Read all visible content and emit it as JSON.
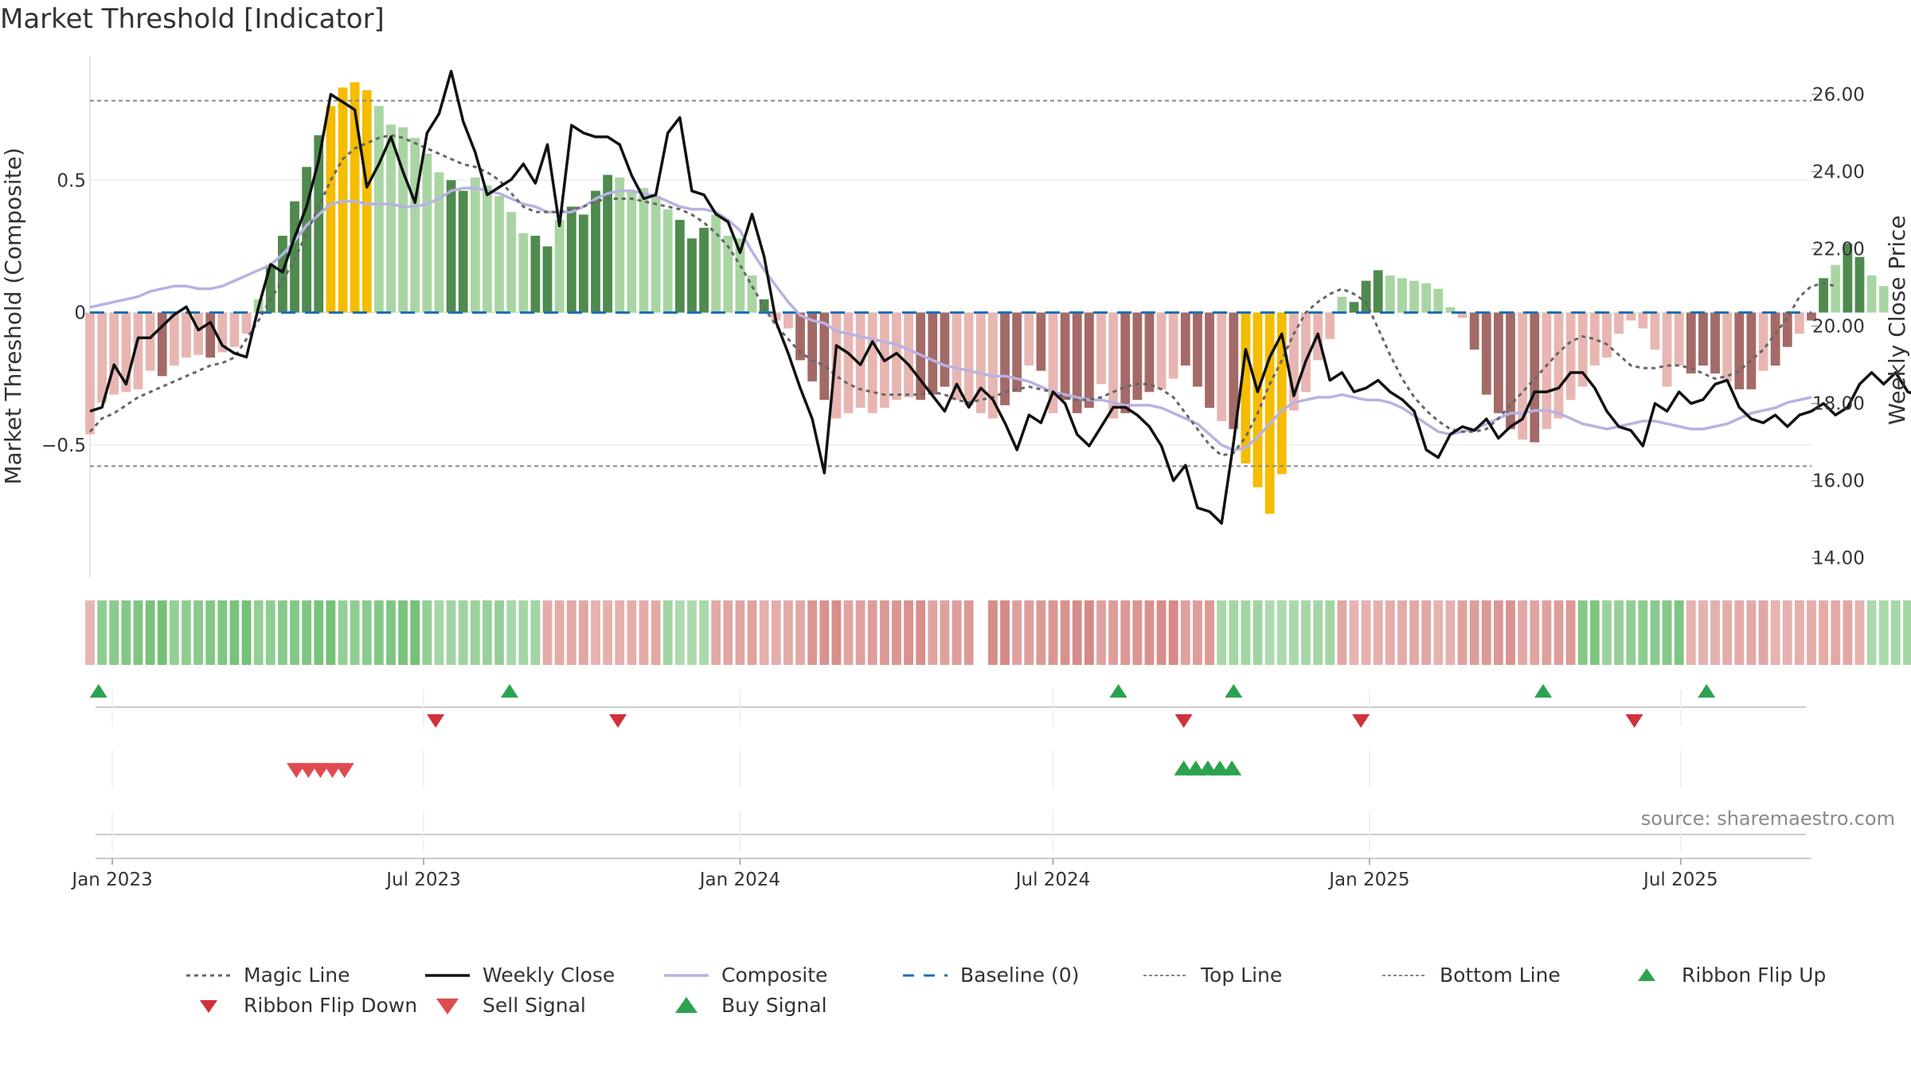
{
  "title": "Market Threshold [Indicator]",
  "source": "source: sharemaestro.com",
  "colors": {
    "pos_dark": "#4f8a4f",
    "pos_light": "#a9d5a3",
    "neg_dark": "#a36a68",
    "neg_light": "#e8b6b2",
    "extreme": "#f5bc00",
    "weekly_close": "#111111",
    "composite": "#b8b2e2",
    "magic_line": "#666666",
    "baseline": "#1f6fb2",
    "threshold_line": "#888888",
    "buy": "#2ca24e",
    "sell": "#d0313b"
  },
  "chart_data": {
    "type": "bar",
    "title": "Market Threshold [Indicator]",
    "ylabel": "Market Threshold (Composite)",
    "y2label": "Weekly Close Price",
    "ylim": [
      -1.0,
      0.97
    ],
    "y2lim": [
      13.5,
      27.0
    ],
    "xlim": [
      "2022-12-19",
      "2025-09-15"
    ],
    "yticks": [
      "0.5",
      "0",
      "−0.5"
    ],
    "y2ticks": [
      "26.00",
      "24.00",
      "22.00",
      "20.00",
      "18.00",
      "16.00",
      "14.00"
    ],
    "xticks": [
      "Jan 2023",
      "Jul 2023",
      "Jan 2024",
      "Jul 2024",
      "Jan 2025",
      "Jul 2025"
    ],
    "top_line": 0.8,
    "bottom_line": -0.58,
    "baseline": 0,
    "series_names": [
      "Magic Line",
      "Weekly Close",
      "Composite",
      "Baseline (0)",
      "Top Line",
      "Bottom Line",
      "Ribbon Flip Up",
      "Ribbon Flip Down",
      "Sell Signal",
      "Buy Signal"
    ],
    "start_week": "2022-12-19",
    "composite_bars": [
      -0.46,
      -0.34,
      -0.31,
      -0.3,
      -0.29,
      -0.22,
      -0.24,
      -0.2,
      -0.17,
      -0.16,
      -0.17,
      -0.15,
      -0.13,
      -0.08,
      0.05,
      0.18,
      0.29,
      0.42,
      0.55,
      0.67,
      0.78,
      0.85,
      0.87,
      0.84,
      0.78,
      0.71,
      0.7,
      0.66,
      0.6,
      0.53,
      0.5,
      0.46,
      0.51,
      0.48,
      0.44,
      0.38,
      0.3,
      0.29,
      0.25,
      0.35,
      0.4,
      0.37,
      0.46,
      0.52,
      0.51,
      0.46,
      0.47,
      0.44,
      0.39,
      0.35,
      0.28,
      0.32,
      0.37,
      0.29,
      0.28,
      0.14,
      0.05,
      -0.03,
      -0.06,
      -0.18,
      -0.26,
      -0.33,
      -0.4,
      -0.38,
      -0.36,
      -0.38,
      -0.36,
      -0.33,
      -0.32,
      -0.33,
      -0.31,
      -0.28,
      -0.33,
      -0.35,
      -0.38,
      -0.4,
      -0.35,
      -0.3,
      -0.2,
      -0.22,
      -0.38,
      -0.33,
      -0.38,
      -0.36,
      -0.27,
      -0.4,
      -0.38,
      -0.33,
      -0.3,
      -0.29,
      -0.25,
      -0.2,
      -0.28,
      -0.36,
      -0.41,
      -0.44,
      -0.57,
      -0.66,
      -0.76,
      -0.61,
      -0.37,
      -0.3,
      -0.18,
      -0.1,
      0.06,
      0.04,
      0.12,
      0.16,
      0.14,
      0.13,
      0.12,
      0.11,
      0.09,
      0.02,
      -0.02,
      -0.14,
      -0.31,
      -0.38,
      -0.44,
      -0.48,
      -0.49,
      -0.44,
      -0.4,
      -0.33,
      -0.28,
      -0.2,
      -0.17,
      -0.08,
      -0.03,
      -0.06,
      -0.14,
      -0.28,
      -0.2,
      -0.23,
      -0.2,
      -0.23,
      -0.26,
      -0.29,
      -0.29,
      -0.22,
      -0.2,
      -0.13,
      -0.08,
      -0.03,
      0.13,
      0.18,
      0.26,
      0.21,
      0.14,
      0.1
    ],
    "extreme_weeks": [
      20,
      21,
      22,
      23,
      96,
      97,
      98,
      99
    ],
    "dark_weeks": [
      6,
      10,
      15,
      16,
      17,
      18,
      19,
      30,
      31,
      37,
      38,
      40,
      41,
      42,
      43,
      49,
      50,
      51,
      56,
      59,
      60,
      61,
      69,
      70,
      71,
      76,
      77,
      79,
      81,
      82,
      83,
      86,
      87,
      88,
      91,
      92,
      93,
      95,
      96,
      97,
      98,
      99,
      105,
      106,
      107,
      115,
      116,
      117,
      118,
      120,
      133,
      134,
      135,
      137,
      138,
      140,
      141,
      143,
      144,
      146,
      147
    ],
    "weekly_close": [
      17.8,
      17.9,
      19.0,
      18.5,
      19.7,
      19.7,
      20.0,
      20.3,
      20.5,
      19.9,
      20.1,
      19.5,
      19.3,
      19.2,
      20.5,
      21.6,
      21.4,
      22.3,
      23.1,
      24.3,
      26.0,
      25.8,
      25.6,
      23.6,
      24.2,
      24.9,
      24.0,
      23.2,
      25.0,
      25.5,
      26.6,
      25.3,
      24.5,
      23.4,
      23.6,
      23.8,
      24.2,
      23.7,
      24.7,
      22.6,
      25.2,
      25.0,
      24.9,
      24.9,
      24.7,
      23.9,
      23.3,
      23.4,
      25.0,
      25.4,
      23.5,
      23.4,
      22.9,
      22.7,
      21.9,
      22.9,
      21.8,
      20.1,
      19.3,
      18.4,
      17.6,
      16.2,
      19.5,
      19.3,
      19.0,
      19.6,
      19.1,
      19.3,
      19.0,
      18.6,
      18.2,
      17.8,
      18.5,
      17.9,
      18.4,
      18.1,
      17.5,
      16.8,
      17.7,
      17.5,
      18.3,
      18.0,
      17.2,
      16.9,
      17.4,
      17.9,
      17.9,
      17.7,
      17.4,
      16.9,
      16.0,
      16.4,
      15.3,
      15.2,
      14.9,
      17.0,
      19.4,
      18.3,
      19.2,
      19.8,
      18.2,
      19.1,
      19.8,
      18.6,
      18.8,
      18.3,
      18.4,
      18.6,
      18.3,
      18.1,
      17.8,
      16.8,
      16.6,
      17.2,
      17.4,
      17.3,
      17.6,
      17.1,
      17.4,
      17.6,
      18.3,
      18.3,
      18.4,
      18.8,
      18.8,
      18.4,
      17.8,
      17.4,
      17.3,
      16.9,
      18.0,
      17.8,
      18.3,
      18.0,
      18.1,
      18.5,
      18.6,
      17.9,
      17.6,
      17.5,
      17.7,
      17.4,
      17.7,
      17.8,
      18.0,
      17.7,
      17.9,
      18.5,
      18.8,
      18.5,
      18.8,
      18.3,
      18.2
    ],
    "composite_line": [
      0.02,
      0.03,
      0.04,
      0.05,
      0.06,
      0.08,
      0.09,
      0.1,
      0.1,
      0.09,
      0.09,
      0.1,
      0.12,
      0.14,
      0.16,
      0.18,
      0.22,
      0.27,
      0.33,
      0.37,
      0.41,
      0.42,
      0.42,
      0.41,
      0.41,
      0.41,
      0.4,
      0.4,
      0.41,
      0.43,
      0.46,
      0.47,
      0.47,
      0.46,
      0.45,
      0.43,
      0.41,
      0.4,
      0.38,
      0.38,
      0.38,
      0.4,
      0.43,
      0.45,
      0.46,
      0.46,
      0.45,
      0.44,
      0.42,
      0.4,
      0.39,
      0.39,
      0.38,
      0.35,
      0.31,
      0.23,
      0.16,
      0.1,
      0.04,
      -0.01,
      -0.03,
      -0.04,
      -0.07,
      -0.08,
      -0.09,
      -0.1,
      -0.11,
      -0.12,
      -0.14,
      -0.16,
      -0.18,
      -0.2,
      -0.21,
      -0.22,
      -0.23,
      -0.24,
      -0.24,
      -0.25,
      -0.26,
      -0.28,
      -0.3,
      -0.31,
      -0.32,
      -0.33,
      -0.33,
      -0.34,
      -0.35,
      -0.35,
      -0.35,
      -0.36,
      -0.38,
      -0.4,
      -0.42,
      -0.46,
      -0.5,
      -0.52,
      -0.51,
      -0.47,
      -0.42,
      -0.37,
      -0.34,
      -0.33,
      -0.32,
      -0.32,
      -0.31,
      -0.32,
      -0.33,
      -0.33,
      -0.34,
      -0.36,
      -0.39,
      -0.42,
      -0.45,
      -0.46,
      -0.45,
      -0.44,
      -0.42,
      -0.4,
      -0.38,
      -0.38,
      -0.37,
      -0.37,
      -0.38,
      -0.4,
      -0.42,
      -0.43,
      -0.44,
      -0.43,
      -0.42,
      -0.41,
      -0.41,
      -0.42,
      -0.43,
      -0.44,
      -0.44,
      -0.43,
      -0.42,
      -0.4,
      -0.38,
      -0.37,
      -0.36,
      -0.34,
      -0.33,
      -0.32
    ],
    "magic_line": [
      -0.45,
      -0.4,
      -0.38,
      -0.35,
      -0.32,
      -0.3,
      -0.28,
      -0.26,
      -0.24,
      -0.22,
      -0.2,
      -0.19,
      -0.17,
      -0.1,
      -0.03,
      0.05,
      0.12,
      0.2,
      0.3,
      0.4,
      0.5,
      0.58,
      0.62,
      0.64,
      0.66,
      0.67,
      0.66,
      0.64,
      0.62,
      0.6,
      0.58,
      0.56,
      0.55,
      0.53,
      0.5,
      0.45,
      0.4,
      0.38,
      0.38,
      0.38,
      0.39,
      0.4,
      0.42,
      0.43,
      0.43,
      0.43,
      0.42,
      0.41,
      0.4,
      0.39,
      0.37,
      0.34,
      0.3,
      0.25,
      0.18,
      0.1,
      0.02,
      -0.05,
      -0.1,
      -0.15,
      -0.18,
      -0.2,
      -0.24,
      -0.27,
      -0.29,
      -0.3,
      -0.31,
      -0.31,
      -0.31,
      -0.31,
      -0.3,
      -0.31,
      -0.33,
      -0.34,
      -0.33,
      -0.32,
      -0.3,
      -0.29,
      -0.28,
      -0.29,
      -0.3,
      -0.32,
      -0.33,
      -0.33,
      -0.32,
      -0.3,
      -0.28,
      -0.27,
      -0.27,
      -0.29,
      -0.32,
      -0.38,
      -0.44,
      -0.5,
      -0.54,
      -0.53,
      -0.47,
      -0.38,
      -0.27,
      -0.18,
      -0.08,
      0.0,
      0.04,
      0.07,
      0.09,
      0.07,
      0.04,
      -0.06,
      -0.16,
      -0.25,
      -0.32,
      -0.37,
      -0.41,
      -0.44,
      -0.45,
      -0.45,
      -0.44,
      -0.4,
      -0.35,
      -0.3,
      -0.25,
      -0.2,
      -0.15,
      -0.11,
      -0.09,
      -0.1,
      -0.12,
      -0.16,
      -0.2,
      -0.21,
      -0.21,
      -0.2,
      -0.2,
      -0.21,
      -0.23,
      -0.25,
      -0.24,
      -0.22,
      -0.18,
      -0.14,
      -0.08,
      -0.02,
      0.06,
      0.1,
      0.11,
      0.1
    ],
    "ribbon": [
      -0.3,
      0.5,
      0.55,
      0.55,
      0.55,
      0.6,
      0.6,
      0.6,
      0.62,
      0.62,
      0.62,
      0.65,
      0.65,
      0.65,
      0.68,
      0.68,
      0.7,
      0.7,
      0.72,
      0.75,
      0.8,
      0.85,
      0.88,
      0.9,
      0.92,
      0.88,
      0.85,
      0.8,
      0.7,
      0.6,
      0.5,
      0.45,
      0.4,
      0.35,
      0.3,
      0.25,
      0.2,
      -0.45,
      -0.45,
      -0.45,
      -0.45,
      -0.45,
      -0.5,
      -0.45,
      -0.45,
      -0.45,
      -0.45,
      -0.5,
      0.35,
      0.35,
      0.35,
      0.3,
      0.3,
      0.3,
      -0.3,
      -0.35,
      -0.35,
      -0.4,
      -0.45,
      -0.45,
      -0.5,
      -0.5,
      -0.55,
      -0.55,
      -0.55,
      -0.6,
      -0.6,
      -0.6,
      -0.65,
      -0.7,
      -0.72,
      -0.75,
      -0.78,
      -0.8,
      null,
      -0.7,
      -0.68,
      -0.66,
      -0.64,
      -0.62,
      -0.6,
      -0.58,
      -0.55,
      -0.52,
      -0.5,
      -0.48,
      -0.45,
      -0.42,
      -0.4,
      -0.38,
      -0.35,
      -0.32,
      -0.3,
      -0.3,
      -0.3,
      -0.3,
      -0.3,
      -0.3,
      -0.3,
      -0.3,
      -0.3,
      -0.3,
      -0.3,
      -0.3,
      -0.3,
      -0.3,
      -0.3,
      -0.3,
      -0.3,
      -0.3,
      -0.3,
      -0.3,
      -0.3,
      -0.3,
      -0.3,
      -0.3,
      -0.3,
      -0.3,
      -0.3,
      -0.3,
      -0.3,
      -0.3,
      -0.3,
      -0.3,
      -0.3,
      -0.3,
      -0.3,
      -0.3,
      -0.3,
      -0.3,
      -0.3,
      -0.3,
      -0.3,
      -0.3,
      -0.3,
      -0.3,
      -0.3,
      -0.3,
      -0.3,
      -0.3,
      -0.3,
      -0.3,
      -0.3,
      -0.3,
      -0.3,
      -0.3,
      -0.3,
      -0.3,
      -0.3,
      -0.3
    ],
    "ribbon_segments": [
      {
        "from": 0,
        "to": 0,
        "value": -0.25
      },
      {
        "from": 1,
        "to": 28,
        "value": 0.7
      },
      {
        "from": 29,
        "to": 37,
        "value": 0.4
      },
      {
        "from": 38,
        "to": 47,
        "value": -0.3
      },
      {
        "from": 48,
        "to": 51,
        "value": 0.3
      },
      {
        "from": 52,
        "to": 59,
        "value": -0.35
      },
      {
        "from": 60,
        "to": 73,
        "value": -0.55
      },
      {
        "from": 75,
        "to": 93,
        "value": -0.6
      },
      {
        "from": 94,
        "to": 103,
        "value": 0.3
      },
      {
        "from": 104,
        "to": 113,
        "value": -0.3
      },
      {
        "from": 114,
        "to": 123,
        "value": -0.5
      },
      {
        "from": 124,
        "to": 132,
        "value": 0.6
      },
      {
        "from": 133,
        "to": 147,
        "value": -0.3
      },
      {
        "from": 148,
        "to": 156,
        "value": 0.3
      }
    ],
    "ribbon_flip_up": [
      "2022-12-24",
      "2023-08-20",
      "2024-08-08",
      "2024-10-14",
      "2025-04-12",
      "2025-07-16"
    ],
    "ribbon_flip_down": [
      "2023-07-08",
      "2023-10-22",
      "2024-09-15",
      "2024-12-27",
      "2025-06-04"
    ],
    "sell_signal": [
      "2023-04-18",
      "2023-04-25",
      "2023-05-02",
      "2023-05-09",
      "2023-05-16"
    ],
    "buy_signal": [
      "2024-09-15",
      "2024-09-22",
      "2024-09-29",
      "2024-10-06",
      "2024-10-13"
    ]
  }
}
